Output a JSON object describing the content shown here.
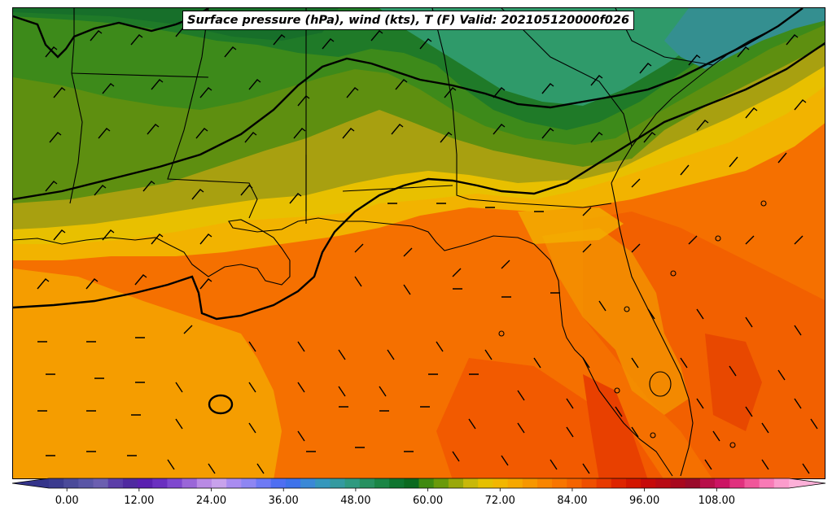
{
  "title": "Surface pressure (hPa), wind (kts), T (F) Valid: 202105120000f026",
  "colorbar": {
    "tick_labels": [
      "0.00",
      "12.00",
      "24.00",
      "36.00",
      "48.00",
      "60.00",
      "72.00",
      "84.00",
      "96.00",
      "108.00"
    ],
    "tick_values": [
      0,
      12,
      24,
      36,
      48,
      60,
      72,
      84,
      96,
      108
    ],
    "range": [
      -6,
      120
    ],
    "step": 3,
    "extend": "both",
    "colors": [
      "#3b3b8f",
      "#4a4a9a",
      "#5a56a6",
      "#6b5fb0",
      "#5b3ea8",
      "#4f2aa0",
      "#5a1fb0",
      "#6a2fc0",
      "#7f48cf",
      "#9a66d8",
      "#b98ae4",
      "#c8a2ec",
      "#a98cf0",
      "#8e86f2",
      "#6f7af4",
      "#4f6ff2",
      "#3e72ea",
      "#3a88d6",
      "#3597bc",
      "#349aa0",
      "#2f9a80",
      "#279060",
      "#1a8545",
      "#0f7530",
      "#0b6a20",
      "#3f8a10",
      "#6a9a0a",
      "#9aa80a",
      "#c8b80a",
      "#e6c000",
      "#f2b600",
      "#f6a800",
      "#f79700",
      "#f88500",
      "#f87500",
      "#f56400",
      "#ef4f00",
      "#e83a00",
      "#de2400",
      "#d31600",
      "#c60a0a",
      "#b80a14",
      "#a8081e",
      "#9a0a2a",
      "#b80f4a",
      "#cc1464",
      "#e0307e",
      "#f0569a",
      "#f87ab6",
      "#fb9ccc"
    ]
  },
  "map": {
    "wind_barbs": "wind-barb-grid",
    "isobars": "pressure-contours",
    "coastlines": "coastline-state-borders",
    "field": "temperature-fill"
  }
}
